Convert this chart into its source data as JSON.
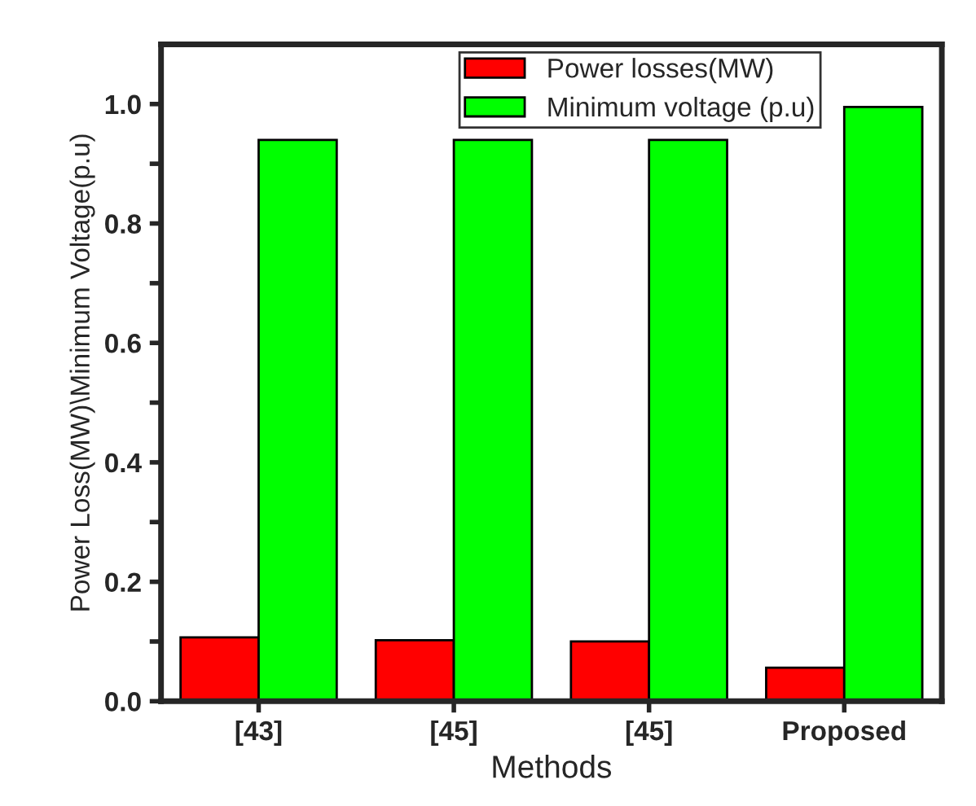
{
  "chart_data": {
    "type": "bar",
    "xlabel": "Methods",
    "ylabel": "Power Loss(MW)\\Minimum Voltage(p.u)",
    "categories": [
      "[43]",
      "[45]",
      "[45]",
      "Proposed"
    ],
    "series": [
      {
        "name": "Power losses(MW)",
        "color": "#ff0000",
        "values": [
          0.107,
          0.102,
          0.1,
          0.056
        ]
      },
      {
        "name": "Minimum voltage (p.u)",
        "color": "#00ff00",
        "values": [
          0.94,
          0.94,
          0.94,
          0.995
        ]
      }
    ],
    "ylim": [
      0,
      1.1
    ],
    "yticks": [
      {
        "value": 0.0,
        "label": "0.0"
      },
      {
        "value": 0.1,
        "label": null
      },
      {
        "value": 0.2,
        "label": "0.2"
      },
      {
        "value": 0.3,
        "label": null
      },
      {
        "value": 0.4,
        "label": "0.4"
      },
      {
        "value": 0.5,
        "label": null
      },
      {
        "value": 0.6,
        "label": "0.6"
      },
      {
        "value": 0.7,
        "label": null
      },
      {
        "value": 0.8,
        "label": "0.8"
      },
      {
        "value": 0.9,
        "label": null
      },
      {
        "value": 1.0,
        "label": "1.0"
      }
    ],
    "legend": "top right",
    "grid": false
  }
}
